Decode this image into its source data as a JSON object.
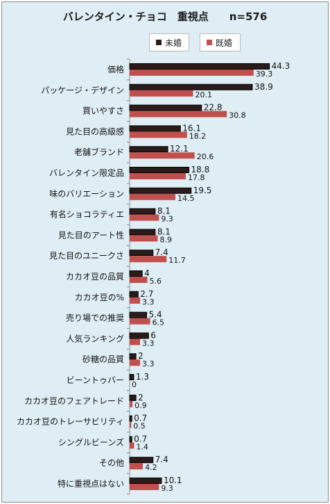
{
  "chart_data": {
    "type": "bar",
    "orientation": "horizontal",
    "title": "バレンタイン・チョコ　重視点　　n=576",
    "categories": [
      "価格",
      "パッケージ・デザイン",
      "買いやすさ",
      "見た目の高級感",
      "老舗ブランド",
      "バレンタイン限定品",
      "味のバリエーション",
      "有名ショコラティエ",
      "見た目のアート性",
      "見た目のユニークさ",
      "カカオ豆の品質",
      "カカオ豆の%",
      "売り場での推奨",
      "人気ランキング",
      "砂糖の品質",
      "ビーントゥバー",
      "カカオ豆のフェアトレード",
      "カカオ豆のトレーサビリティ",
      "シングルビーンズ",
      "その他",
      "特に重視点はない"
    ],
    "series": [
      {
        "name": "未婚",
        "color": "#2b1c1c",
        "values": [
          44.3,
          38.9,
          22.8,
          16.1,
          12.1,
          18.8,
          19.5,
          8.1,
          8.1,
          7.4,
          4,
          2.7,
          5.4,
          6,
          2,
          1.3,
          2,
          0.7,
          0.7,
          7.4,
          10.1
        ]
      },
      {
        "name": "既婚",
        "color": "#c0504d",
        "values": [
          39.3,
          20.1,
          30.8,
          18.2,
          20.6,
          17.8,
          14.5,
          9.3,
          8.9,
          11.7,
          5.6,
          3.3,
          6.5,
          3.3,
          3.3,
          0,
          0.9,
          0.5,
          1.4,
          4.2,
          9.3
        ]
      }
    ],
    "xlim": [
      0,
      50
    ],
    "grid": false,
    "legend_position": "top-right"
  }
}
